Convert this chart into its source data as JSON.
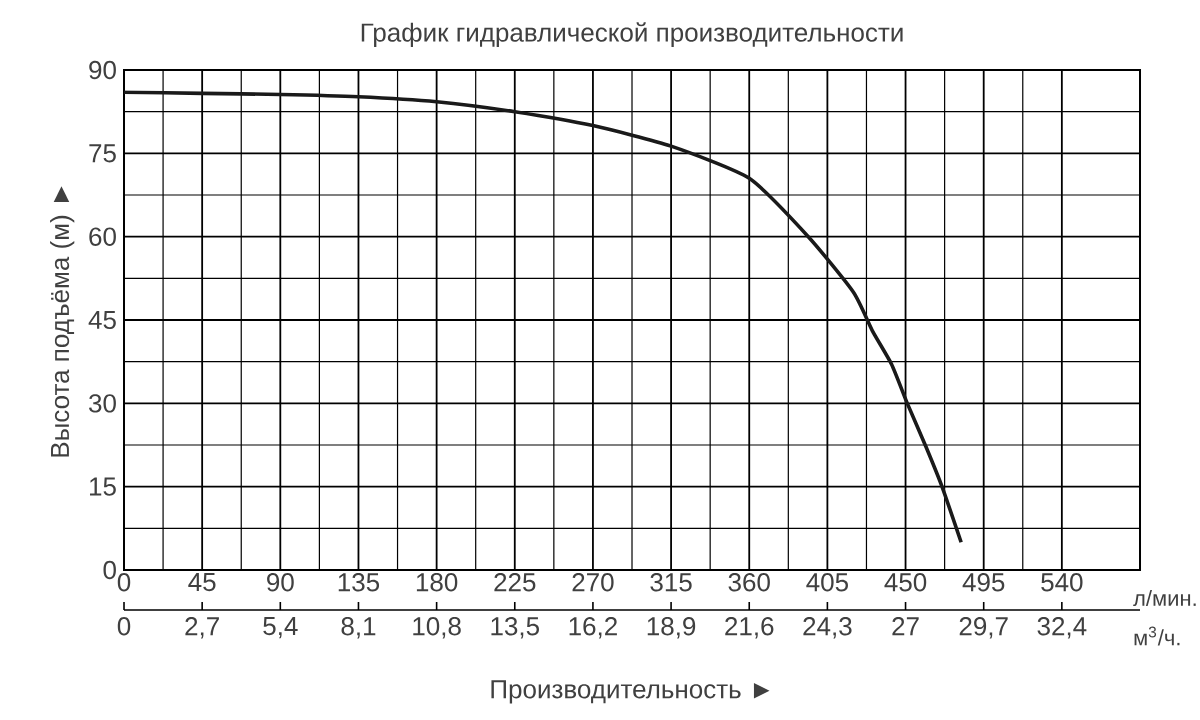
{
  "chart_data": {
    "type": "line",
    "title": "График гидравлической производительности",
    "xlabel": "Производительность ►",
    "ylabel": "Высота подъёма (м) ►",
    "x": [
      0,
      45,
      90,
      135,
      180,
      225,
      270,
      315,
      360,
      394,
      420,
      431,
      442,
      451,
      462,
      471,
      482
    ],
    "series": [
      {
        "color": "#1a1a1a",
        "values": [
          86,
          85.8,
          85.6,
          85.2,
          84.3,
          82.5,
          80,
          76.3,
          70.5,
          60,
          50,
          43,
          37,
          30,
          22,
          15,
          5
        ]
      }
    ],
    "xlim": [
      0,
      585
    ],
    "ylim": [
      0,
      90
    ],
    "xticks": [
      0,
      45,
      90,
      135,
      180,
      225,
      270,
      315,
      360,
      405,
      450,
      495,
      540
    ],
    "annotations": [
      "л/мин.",
      "м$^{3}$/ч."
    ],
    "yticks": [
      0,
      15,
      30,
      45,
      60,
      75,
      90
    ],
    "x2lim": [
      0,
      35.1
    ],
    "x2ticks": [
      0,
      {
        "value": 2.7,
        "label": "2,7"
      },
      {
        "value": 5.4,
        "label": "5,4"
      },
      {
        "value": 8.1,
        "label": "8,1"
      },
      {
        "value": 10.8,
        "label": "10,8"
      },
      {
        "value": 13.5,
        "label": "13,5"
      },
      {
        "value": 16.2,
        "label": "16,2"
      },
      {
        "value": 18.9,
        "label": "18,9"
      },
      {
        "value": 21.6,
        "label": "21,6"
      },
      {
        "value": 24.3,
        "label": "24,3"
      },
      27,
      {
        "value": 29.7,
        "label": "29,7"
      },
      {
        "value": 32.4,
        "label": "32,4"
      }
    ],
    "grid": true,
    "marker": "none",
    "line_style": "solid"
  }
}
